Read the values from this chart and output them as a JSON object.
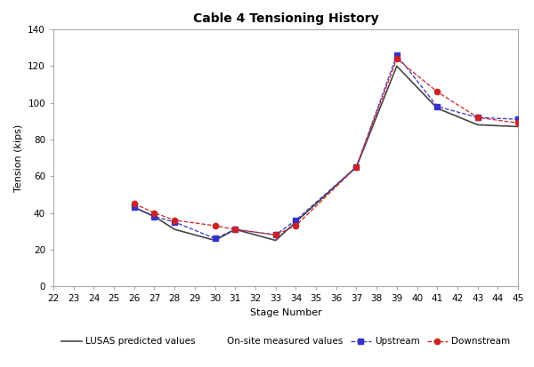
{
  "title": "Cable 4 Tensioning History",
  "xlabel": "Stage Number",
  "ylabel": "Tension (kips)",
  "xlim": [
    22,
    45
  ],
  "ylim": [
    0,
    140
  ],
  "xticks": [
    22,
    23,
    24,
    25,
    26,
    27,
    28,
    29,
    30,
    31,
    32,
    33,
    34,
    35,
    36,
    37,
    38,
    39,
    40,
    41,
    42,
    43,
    44,
    45
  ],
  "yticks": [
    0,
    20,
    40,
    60,
    80,
    100,
    120,
    140
  ],
  "lusas_x": [
    26,
    27,
    28,
    30,
    31,
    33,
    34,
    37,
    39,
    41,
    43,
    45
  ],
  "lusas_y": [
    43,
    38,
    31,
    25,
    31,
    25,
    35,
    65,
    120,
    97,
    88,
    87
  ],
  "upstream_x": [
    26,
    27,
    28,
    30,
    31,
    33,
    34,
    37,
    39,
    41,
    43,
    45
  ],
  "upstream_y": [
    43,
    38,
    35,
    26,
    31,
    28,
    36,
    65,
    126,
    98,
    92,
    91
  ],
  "downstream_x": [
    26,
    27,
    28,
    30,
    31,
    33,
    34,
    37,
    39,
    41,
    43,
    45
  ],
  "downstream_y": [
    45,
    40,
    36,
    33,
    31,
    28,
    33,
    65,
    124,
    106,
    92,
    89
  ],
  "lusas_color": "#444444",
  "upstream_color": "#3333cc",
  "downstream_color": "#cc2222",
  "spine_color": "#aaaaaa",
  "title_fontsize": 10,
  "axis_label_fontsize": 8,
  "tick_fontsize": 7.5,
  "legend_fontsize": 7.5
}
